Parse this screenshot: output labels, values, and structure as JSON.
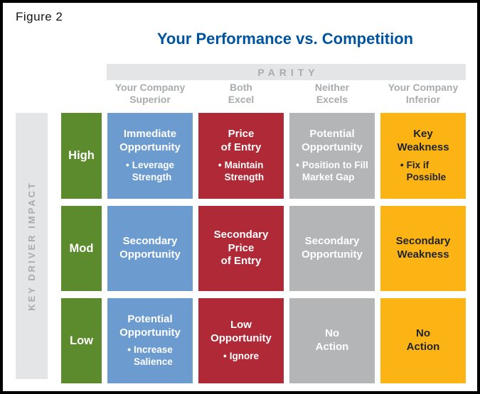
{
  "figure": {
    "label": "Figure 2",
    "title": "Your Performance vs. Competition"
  },
  "glyphs": {
    "bullet": "•"
  },
  "colors": {
    "title_blue": "#00539f",
    "bar_bg": "#e4e5e6",
    "bar_text": "#a9abad",
    "green": "#5b8b2d",
    "blue": "#6c9bd0",
    "red": "#b02936",
    "gray": "#b3b5b7",
    "yellow": "#fcb415",
    "dark_text": "#20242e"
  },
  "axes": {
    "parity_label": "PARITY",
    "impact_label": "KEY DRIVER IMPACT",
    "columns": [
      "Your Company\nSuperior",
      "Both\nExcel",
      "Neither\nExcels",
      "Your Company\nInferior"
    ],
    "row_labels": [
      "High",
      "Mod",
      "Low"
    ]
  },
  "grid": {
    "rows": [
      {
        "impact": "High",
        "cells": [
          {
            "color": "blue",
            "title": "Immediate\nOpportunity",
            "bullet": "Leverage\nStrength"
          },
          {
            "color": "red",
            "title": "Price\nof Entry",
            "bullet": "Maintain\nStrength"
          },
          {
            "color": "gray",
            "title": "Potential\nOpportunity",
            "bullet": "Position to Fill\nMarket Gap"
          },
          {
            "color": "yellow",
            "title": "Key\nWeakness",
            "bullet": "Fix if\nPossible"
          }
        ]
      },
      {
        "impact": "Mod",
        "cells": [
          {
            "color": "blue",
            "title": "Secondary\nOpportunity"
          },
          {
            "color": "red",
            "title": "Secondary\nPrice\nof Entry"
          },
          {
            "color": "gray",
            "title": "Secondary\nOpportunity"
          },
          {
            "color": "yellow",
            "title": "Secondary\nWeakness"
          }
        ]
      },
      {
        "impact": "Low",
        "cells": [
          {
            "color": "blue",
            "title": "Potential\nOpportunity",
            "bullet": "Increase\nSalience"
          },
          {
            "color": "red",
            "title": "Low\nOpportunity",
            "bullet": "Ignore"
          },
          {
            "color": "gray",
            "title": "No\nAction"
          },
          {
            "color": "yellow",
            "title": "No\nAction"
          }
        ]
      }
    ]
  }
}
